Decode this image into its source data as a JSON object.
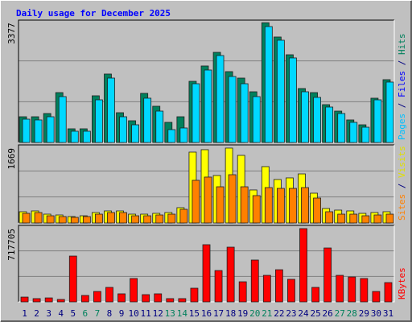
{
  "chart_data": {
    "type": "bar",
    "title": "Daily usage for December 2025",
    "title_color": "#0000ff",
    "categories": [
      "1",
      "2",
      "3",
      "4",
      "5",
      "6",
      "7",
      "8",
      "9",
      "10",
      "11",
      "12",
      "13",
      "14",
      "15",
      "16",
      "17",
      "18",
      "19",
      "20",
      "21",
      "22",
      "23",
      "24",
      "25",
      "26",
      "27",
      "28",
      "29",
      "30",
      "31"
    ],
    "weekend_categories": [
      "6",
      "7",
      "13",
      "14",
      "20",
      "21",
      "27",
      "28"
    ],
    "weekday_color": "#000080",
    "weekend_color": "#00805c",
    "separator": " / ",
    "panels": [
      {
        "ylim": [
          0,
          3450
        ],
        "yticks": [
          {
            "value": 3377,
            "label": "3377"
          }
        ],
        "legend": [
          {
            "text": "Pages",
            "color": "#00c0ff"
          },
          {
            "text": "Files",
            "color": "#0000ff"
          },
          {
            "text": "Hits",
            "color": "#00805c"
          }
        ],
        "series": [
          {
            "legend": 2,
            "color": "#00805c",
            "values": [
              726,
              726,
              817,
              1407,
              386,
              386,
              1317,
              1930,
              840,
              613,
              1385,
              1022,
              568,
              726,
              1725,
              2157,
              2542,
              1998,
              1816,
              1430,
              3377,
              2974,
              2474,
              1521,
              1407,
              1067,
              885,
              636,
              499,
              1249,
              1771
            ]
          },
          {
            "legend": 1,
            "color": "#00d8ff",
            "values": [
              658,
              636,
              726,
              1294,
              318,
              318,
              1203,
              1816,
              726,
              499,
              1249,
              885,
              363,
              409,
              1657,
              2043,
              2452,
              1861,
              1657,
              1294,
              3269,
              2883,
              2384,
              1430,
              1271,
              999,
              817,
              568,
              431,
              1203,
              1703
            ]
          }
        ]
      },
      {
        "ylim": [
          0,
          1740
        ],
        "yticks": [
          {
            "value": 1669,
            "label": "1669"
          }
        ],
        "legend": [
          {
            "text": "Sites",
            "color": "#ff8000"
          },
          {
            "text": "Visits",
            "color": "#e0e000"
          }
        ],
        "series": [
          {
            "legend": 1,
            "color": "#ffff00",
            "values": [
              251,
              269,
              197,
              179,
              144,
              161,
              233,
              269,
              269,
              197,
              197,
              215,
              233,
              341,
              1579,
              1633,
              1058,
              1669,
              1507,
              736,
              1256,
              969,
              1005,
              1094,
              664,
              323,
              287,
              269,
              215,
              233,
              251
            ]
          },
          {
            "legend": 0,
            "color": "#ff8000",
            "values": [
              215,
              233,
              161,
              144,
              126,
              144,
              197,
              233,
              233,
              161,
              161,
              179,
              197,
              305,
              951,
              1023,
              807,
              1076,
              807,
              610,
              789,
              771,
              771,
              789,
              556,
              251,
              197,
              197,
              161,
              179,
              197
            ]
          }
        ]
      },
      {
        "ylim": [
          0,
          749000
        ],
        "yticks": [
          {
            "value": 717705,
            "label": "717705"
          }
        ],
        "legend": [
          {
            "text": "KBytes",
            "color": "#ff0000"
          }
        ],
        "series": [
          {
            "legend": 0,
            "color": "#ff0000",
            "values": [
              47000,
              32000,
              39000,
              24000,
              449000,
              63000,
              102000,
              142000,
              79000,
              229000,
              71000,
              79000,
              32000,
              32000,
              134000,
              560000,
              307000,
              536000,
              197000,
              410000,
              260000,
              315000,
              221000,
              717705,
              142000,
              528000,
              260000,
              244000,
              229000,
              102000,
              189000
            ]
          }
        ]
      }
    ]
  }
}
